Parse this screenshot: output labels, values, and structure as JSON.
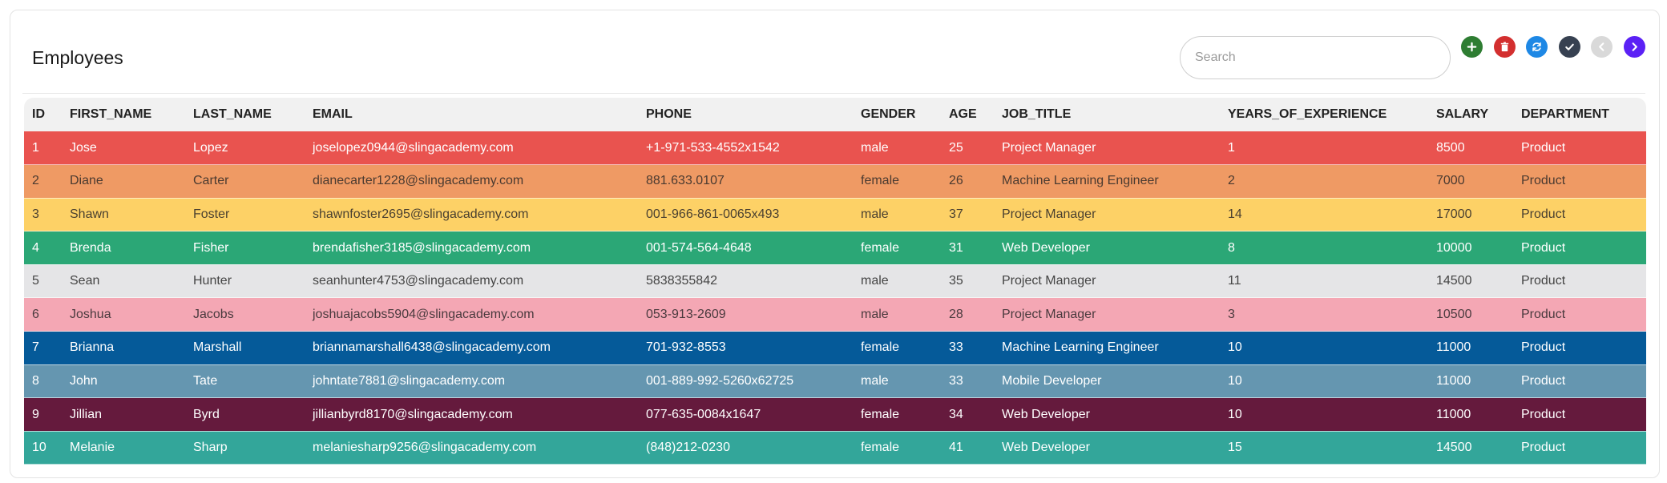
{
  "title": "Employees",
  "search": {
    "placeholder": "Search",
    "value": ""
  },
  "toolbar": [
    {
      "name": "add-button",
      "icon": "plus-icon",
      "color": "#2e7d32"
    },
    {
      "name": "delete-button",
      "icon": "trash-icon",
      "color": "#d32f2f"
    },
    {
      "name": "refresh-button",
      "icon": "refresh-icon",
      "color": "#1e88e5"
    },
    {
      "name": "confirm-button",
      "icon": "check-icon",
      "color": "#374151"
    },
    {
      "name": "previous-page-button",
      "icon": "chevron-left-icon",
      "color": "#d9d9d9"
    },
    {
      "name": "next-page-button",
      "icon": "chevron-right-icon",
      "color": "#5b21f5"
    }
  ],
  "columns": [
    "ID",
    "FIRST_NAME",
    "LAST_NAME",
    "EMAIL",
    "PHONE",
    "GENDER",
    "AGE",
    "JOB_TITLE",
    "YEARS_OF_EXPERIENCE",
    "SALARY",
    "DEPARTMENT"
  ],
  "rows": [
    {
      "bg": "#e9534f",
      "fg": "#ffffff",
      "cells": [
        "1",
        "Jose",
        "Lopez",
        "joselopez0944@slingacademy.com",
        "+1-971-533-4552x1542",
        "male",
        "25",
        "Project Manager",
        "1",
        "8500",
        "Product"
      ]
    },
    {
      "bg": "#ef9a64",
      "fg": "#4a3a30",
      "cells": [
        "2",
        "Diane",
        "Carter",
        "dianecarter1228@slingacademy.com",
        "881.633.0107",
        "female",
        "26",
        "Machine Learning Engineer",
        "2",
        "7000",
        "Product"
      ]
    },
    {
      "bg": "#fdd166",
      "fg": "#4a4030",
      "cells": [
        "3",
        "Shawn",
        "Foster",
        "shawnfoster2695@slingacademy.com",
        "001-966-861-0065x493",
        "male",
        "37",
        "Project Manager",
        "14",
        "17000",
        "Product"
      ]
    },
    {
      "bg": "#2ba776",
      "fg": "#ffffff",
      "cells": [
        "4",
        "Brenda",
        "Fisher",
        "brendafisher3185@slingacademy.com",
        "001-574-564-4648",
        "female",
        "31",
        "Web Developer",
        "8",
        "10000",
        "Product"
      ]
    },
    {
      "bg": "#e5e5e7",
      "fg": "#444444",
      "cells": [
        "5",
        "Sean",
        "Hunter",
        "seanhunter4753@slingacademy.com",
        "5838355842",
        "male",
        "35",
        "Project Manager",
        "11",
        "14500",
        "Product"
      ]
    },
    {
      "bg": "#f4a7b4",
      "fg": "#4a3a3e",
      "cells": [
        "6",
        "Joshua",
        "Jacobs",
        "joshuajacobs5904@slingacademy.com",
        "053-913-2609",
        "male",
        "28",
        "Project Manager",
        "3",
        "10500",
        "Product"
      ]
    },
    {
      "bg": "#055a99",
      "fg": "#ffffff",
      "cells": [
        "7",
        "Brianna",
        "Marshall",
        "briannamarshall6438@slingacademy.com",
        "701-932-8553",
        "female",
        "33",
        "Machine Learning Engineer",
        "10",
        "11000",
        "Product"
      ]
    },
    {
      "bg": "#6596b0",
      "fg": "#ffffff",
      "cells": [
        "8",
        "John",
        "Tate",
        "johntate7881@slingacademy.com",
        "001-889-992-5260x62725",
        "male",
        "33",
        "Mobile Developer",
        "10",
        "11000",
        "Product"
      ]
    },
    {
      "bg": "#651a3d",
      "fg": "#ffffff",
      "cells": [
        "9",
        "Jillian",
        "Byrd",
        "jillianbyrd8170@slingacademy.com",
        "077-635-0084x1647",
        "female",
        "34",
        "Web Developer",
        "10",
        "11000",
        "Product"
      ]
    },
    {
      "bg": "#33a69a",
      "fg": "#ffffff",
      "cells": [
        "10",
        "Melanie",
        "Sharp",
        "melaniesharp9256@slingacademy.com",
        "(848)212-0230",
        "female",
        "41",
        "Web Developer",
        "15",
        "14500",
        "Product"
      ]
    }
  ]
}
